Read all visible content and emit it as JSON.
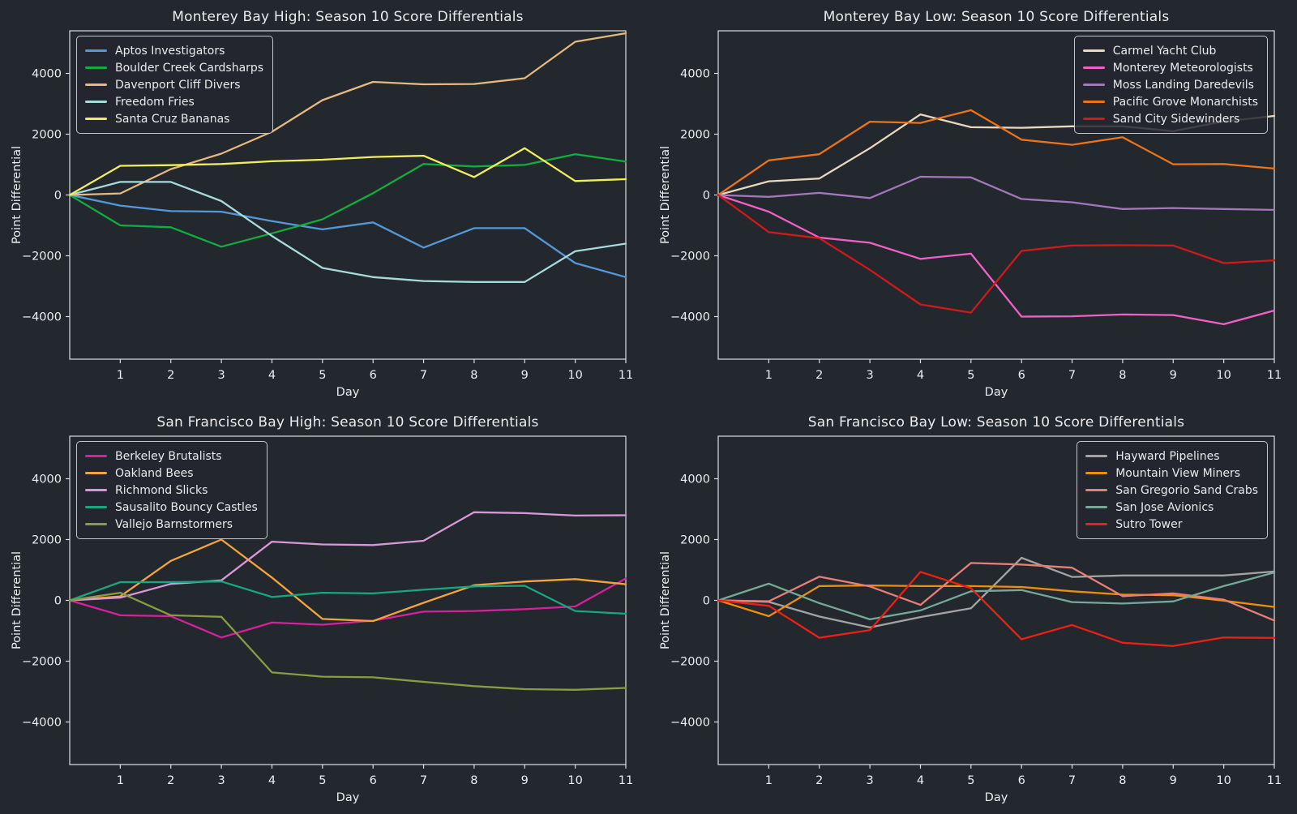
{
  "figure": {
    "background_color": "#23272e",
    "spine_color": "#dedede",
    "tick_text_color": "#ededed",
    "title_color": "#ebebeb"
  },
  "chart_data": [
    {
      "type": "line",
      "title": "Monterey Bay High: Season 10 Score Differentials",
      "xlabel": "Day",
      "ylabel": "Point Differential",
      "legend_position": "top-left",
      "grid": false,
      "x": [
        0,
        1,
        2,
        3,
        4,
        5,
        6,
        7,
        8,
        9,
        10,
        11
      ],
      "xticks": [
        1,
        2,
        3,
        4,
        5,
        6,
        7,
        8,
        9,
        10,
        11
      ],
      "yticks": [
        -4000,
        -2000,
        0,
        2000,
        4000
      ],
      "ylim": [
        -5400,
        5400
      ],
      "series": [
        {
          "name": "Aptos Investigators",
          "color": "#5598d8",
          "values": [
            0,
            -350,
            -530,
            -550,
            -860,
            -1130,
            -900,
            -1730,
            -1090,
            -1090,
            -2240,
            -2700
          ]
        },
        {
          "name": "Boulder Creek Cardsharps",
          "color": "#10ad3f",
          "values": [
            0,
            -1000,
            -1060,
            -1700,
            -1260,
            -800,
            60,
            1020,
            940,
            990,
            1340,
            1100
          ]
        },
        {
          "name": "Davenport Cliff Divers",
          "color": "#e5b97f",
          "values": [
            0,
            50,
            850,
            1360,
            2080,
            3120,
            3720,
            3640,
            3650,
            3840,
            5040,
            5320
          ]
        },
        {
          "name": "Freedom Fries",
          "color": "#a6dadb",
          "values": [
            0,
            430,
            430,
            -200,
            -1350,
            -2400,
            -2700,
            -2830,
            -2860,
            -2860,
            -1850,
            -1600
          ]
        },
        {
          "name": "Santa Cruz Bananas",
          "color": "#f1ee5b",
          "values": [
            0,
            960,
            980,
            1020,
            1110,
            1160,
            1250,
            1290,
            590,
            1540,
            460,
            520
          ]
        }
      ]
    },
    {
      "type": "line",
      "title": "Monterey Bay Low: Season 10 Score Differentials",
      "xlabel": "Day",
      "ylabel": "Point Differential",
      "legend_position": "top-right",
      "grid": false,
      "x": [
        0,
        1,
        2,
        3,
        4,
        5,
        6,
        7,
        8,
        9,
        10,
        11
      ],
      "xticks": [
        1,
        2,
        3,
        4,
        5,
        6,
        7,
        8,
        9,
        10,
        11
      ],
      "yticks": [
        -4000,
        -2000,
        0,
        2000,
        4000
      ],
      "ylim": [
        -5400,
        5400
      ],
      "series": [
        {
          "name": "Carmel Yacht Club",
          "color": "#e9d8bd",
          "values": [
            0,
            450,
            540,
            1540,
            2650,
            2230,
            2210,
            2260,
            2260,
            2100,
            2420,
            2600
          ]
        },
        {
          "name": "Monterey Meteorologists",
          "color": "#ef61c6",
          "values": [
            0,
            -550,
            -1400,
            -1570,
            -2100,
            -1930,
            -4000,
            -3990,
            -3930,
            -3950,
            -4250,
            -3800
          ]
        },
        {
          "name": "Moss Landing Daredevils",
          "color": "#a277bb",
          "values": [
            0,
            -60,
            70,
            -100,
            600,
            580,
            -130,
            -240,
            -460,
            -430,
            -460,
            -490
          ]
        },
        {
          "name": "Pacific Grove Monarchists",
          "color": "#ec7418",
          "values": [
            0,
            1140,
            1340,
            2410,
            2370,
            2790,
            1820,
            1650,
            1900,
            1010,
            1020,
            870
          ]
        },
        {
          "name": "Sand City Sidewinders",
          "color": "#ce1a1a",
          "values": [
            0,
            -1220,
            -1420,
            -2460,
            -3600,
            -3870,
            -1840,
            -1660,
            -1650,
            -1660,
            -2240,
            -2150
          ]
        }
      ]
    },
    {
      "type": "line",
      "title": "San Francisco Bay High: Season 10 Score Differentials",
      "xlabel": "Day",
      "ylabel": "Point Differential",
      "legend_position": "top-left",
      "grid": false,
      "x": [
        0,
        1,
        2,
        3,
        4,
        5,
        6,
        7,
        8,
        9,
        10,
        11
      ],
      "xticks": [
        1,
        2,
        3,
        4,
        5,
        6,
        7,
        8,
        9,
        10,
        11
      ],
      "yticks": [
        -4000,
        -2000,
        0,
        2000,
        4000
      ],
      "ylim": [
        -5400,
        5400
      ],
      "series": [
        {
          "name": "Berkeley Brutalists",
          "color": "#d6219c",
          "values": [
            0,
            -490,
            -520,
            -1220,
            -730,
            -800,
            -670,
            -370,
            -350,
            -290,
            -200,
            720
          ]
        },
        {
          "name": "Oakland Bees",
          "color": "#f3a53b",
          "values": [
            0,
            130,
            1300,
            2000,
            750,
            -610,
            -680,
            -80,
            500,
            620,
            700,
            530
          ]
        },
        {
          "name": "Richmond Slicks",
          "color": "#d897d9",
          "values": [
            0,
            90,
            540,
            660,
            1930,
            1840,
            1820,
            1960,
            2900,
            2870,
            2790,
            2800
          ]
        },
        {
          "name": "Sausalito Bouncy Castles",
          "color": "#16a87d",
          "values": [
            0,
            600,
            600,
            620,
            110,
            250,
            230,
            350,
            460,
            480,
            -350,
            -440
          ]
        },
        {
          "name": "Vallejo Barnstormers",
          "color": "#8a9b41",
          "values": [
            0,
            250,
            -490,
            -540,
            -2370,
            -2510,
            -2530,
            -2680,
            -2820,
            -2920,
            -2940,
            -2880
          ]
        }
      ]
    },
    {
      "type": "line",
      "title": "San Francisco Bay Low: Season 10 Score Differentials",
      "xlabel": "Day",
      "ylabel": "Point Differential",
      "legend_position": "top-right",
      "grid": false,
      "x": [
        0,
        1,
        2,
        3,
        4,
        5,
        6,
        7,
        8,
        9,
        10,
        11
      ],
      "xticks": [
        1,
        2,
        3,
        4,
        5,
        6,
        7,
        8,
        9,
        10,
        11
      ],
      "yticks": [
        -4000,
        -2000,
        0,
        2000,
        4000
      ],
      "ylim": [
        -5400,
        5400
      ],
      "series": [
        {
          "name": "Hayward Pipelines",
          "color": "#a3a3a3",
          "values": [
            0,
            -50,
            -530,
            -890,
            -550,
            -260,
            1400,
            770,
            820,
            820,
            820,
            950
          ]
        },
        {
          "name": "Mountain View Miners",
          "color": "#ef8e09",
          "values": [
            0,
            -520,
            470,
            490,
            470,
            470,
            440,
            300,
            190,
            170,
            -10,
            -215
          ]
        },
        {
          "name": "San Gregorio Sand Crabs",
          "color": "#e87e78",
          "values": [
            0,
            -30,
            780,
            460,
            -150,
            1230,
            1180,
            1075,
            140,
            230,
            25,
            -660
          ]
        },
        {
          "name": "San Jose Avionics",
          "color": "#75aa97",
          "values": [
            0,
            550,
            -90,
            -625,
            -330,
            300,
            340,
            -55,
            -105,
            -35,
            470,
            915
          ]
        },
        {
          "name": "Sutro Tower",
          "color": "#ee1f14",
          "values": [
            0,
            -180,
            -1230,
            -980,
            935,
            400,
            -1280,
            -810,
            -1395,
            -1500,
            -1220,
            -1235
          ]
        }
      ]
    }
  ]
}
